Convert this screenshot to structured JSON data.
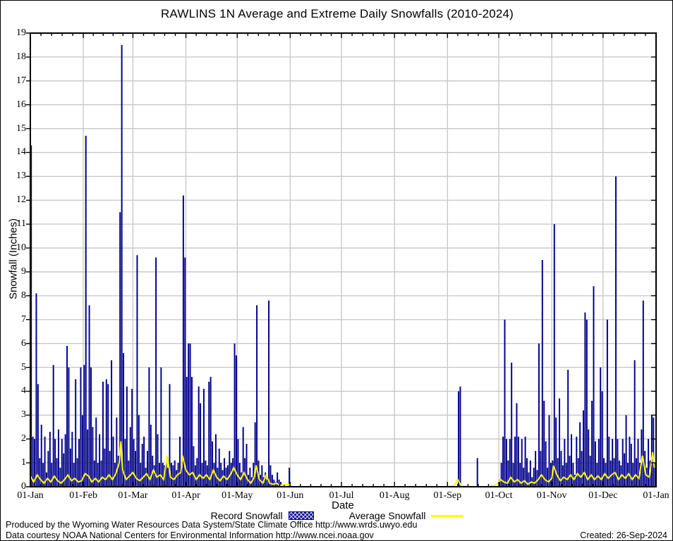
{
  "title": "RAWLINS 1N Average and Extreme Daily Snowfalls (2010-2024)",
  "y_axis": {
    "label": "Snowfall (Inches)",
    "ticks": [
      "0",
      "1",
      "2",
      "3",
      "4",
      "5",
      "6",
      "7",
      "8",
      "9",
      "10",
      "11",
      "12",
      "13",
      "14",
      "15",
      "16",
      "17",
      "18",
      "19"
    ]
  },
  "x_axis": {
    "label": "Date",
    "ticks": [
      "01-Jan",
      "01-Feb",
      "01-Mar",
      "01-Apr",
      "01-May",
      "01-Jun",
      "01-Jul",
      "01-Aug",
      "01-Sep",
      "01-Oct",
      "01-Nov",
      "01-Dec",
      "01-Jan"
    ]
  },
  "legend": {
    "record_label": "Record Snowfall",
    "average_label": "Average Snowfall"
  },
  "footer": {
    "line1": "Produced by the Wyoming Water Resources Data System/State Climate Office http://www.wrds.uwyo.edu",
    "line2": "Data courtesy NOAA National Centers for Environmental Information http://www.ncei.noaa.gov",
    "created": "Created: 26-Sep-2024"
  },
  "colors": {
    "record_bar": "#00008b",
    "average_line": "#ffff00",
    "grid": "#c6c6c6",
    "axis": "#000000",
    "background": "#ffffff"
  },
  "chart_data": {
    "type": "bar",
    "title": "RAWLINS 1N Average and Extreme Daily Snowfalls (2010-2024)",
    "xlabel": "Date",
    "ylabel": "Snowfall (Inches)",
    "ylim": [
      0,
      19
    ],
    "grid": true,
    "legend_position": "bottom",
    "x_unit": "day_of_year",
    "month_boundaries": [
      0,
      31,
      60,
      91,
      121,
      152,
      182,
      213,
      244,
      274,
      305,
      335,
      366
    ],
    "series": [
      {
        "name": "Record Snowfall",
        "type": "bar",
        "color": "#00008b",
        "values": [
          14.3,
          2.1,
          2.0,
          8.1,
          4.3,
          1.2,
          2.6,
          1.0,
          2.1,
          0.6,
          1.5,
          2.3,
          1.0,
          5.1,
          2.0,
          1.2,
          2.4,
          0.8,
          2.0,
          1.4,
          2.2,
          5.9,
          5.0,
          1.6,
          2.3,
          1.0,
          4.5,
          1.2,
          2.0,
          5.0,
          3.0,
          5.1,
          14.7,
          2.4,
          7.6,
          5.0,
          2.5,
          1.1,
          2.9,
          1.0,
          2.2,
          1.1,
          4.4,
          1.6,
          4.5,
          4.3,
          1.5,
          5.3,
          2.1,
          1.0,
          2.9,
          1.3,
          11.5,
          18.5,
          5.6,
          2.0,
          4.2,
          1.1,
          2.5,
          4.1,
          2.0,
          1.5,
          9.7,
          3.0,
          1.0,
          1.8,
          2.1,
          0.8,
          1.5,
          5.0,
          2.6,
          1.3,
          0.9,
          9.6,
          2.2,
          1.0,
          5.0,
          1.0,
          0.9,
          1.0,
          0.8,
          4.3,
          1.0,
          0.9,
          1.1,
          0.7,
          1.0,
          2.1,
          0.8,
          12.2,
          9.6,
          4.6,
          6.0,
          6.0,
          4.6,
          1.7,
          0.9,
          1.2,
          4.2,
          3.5,
          1.0,
          4.1,
          1.1,
          0.9,
          4.4,
          4.6,
          1.9,
          1.0,
          2.2,
          0.8,
          1.6,
          1.0,
          0.7,
          1.2,
          0.8,
          0.9,
          1.5,
          1.0,
          1.2,
          6.0,
          5.5,
          2.0,
          1.0,
          0.6,
          2.5,
          1.2,
          1.8,
          0.5,
          0.8,
          0.4,
          1.0,
          2.7,
          7.6,
          1.1,
          0.5,
          0.9,
          0.4,
          0.6,
          0.3,
          7.8,
          0.9,
          0.5,
          0.3,
          0.2,
          0.6,
          0.3,
          0.2,
          0,
          0.1,
          0,
          0,
          0.8,
          0,
          0,
          0,
          0,
          0,
          0,
          0,
          0,
          0,
          0,
          0,
          0,
          0,
          0,
          0,
          0,
          0,
          0,
          0,
          0,
          0,
          0,
          0,
          0,
          0,
          0,
          0,
          0,
          0,
          0,
          0,
          0,
          0,
          0,
          0,
          0,
          0,
          0,
          0,
          0,
          0,
          0,
          0,
          0,
          0,
          0,
          0,
          0,
          0,
          0,
          0,
          0,
          0,
          0,
          0,
          0,
          0,
          0,
          0,
          0,
          0,
          0,
          0,
          0,
          0,
          0,
          0,
          0,
          0,
          0,
          0,
          0,
          0,
          0,
          0,
          0,
          0,
          0,
          0,
          0,
          0,
          0,
          0,
          0,
          0,
          0,
          0,
          0,
          0,
          0,
          0,
          0,
          0,
          0,
          0,
          0,
          0,
          0,
          4.0,
          4.2,
          0,
          0,
          0,
          0,
          0,
          0,
          0,
          0,
          0,
          1.2,
          0,
          0,
          0,
          0,
          0,
          0,
          0,
          0,
          0,
          0,
          0,
          0,
          0.3,
          1.0,
          2.1,
          7.0,
          2.0,
          1.1,
          2.0,
          5.2,
          1.0,
          2.1,
          3.5,
          2.1,
          1.0,
          2.0,
          0.8,
          2.1,
          1.2,
          0.6,
          1.1,
          0.4,
          0.8,
          1.5,
          0.7,
          6.0,
          1.5,
          9.5,
          3.6,
          1.9,
          0.8,
          3.0,
          1.0,
          1.1,
          11.0,
          2.9,
          1.2,
          3.7,
          1.5,
          0.9,
          2.0,
          1.0,
          4.9,
          1.3,
          2.2,
          1.0,
          0.5,
          2.1,
          1.2,
          2.7,
          1.5,
          3.2,
          7.3,
          7.0,
          2.4,
          1.3,
          3.6,
          8.4,
          1.9,
          1.0,
          2.0,
          5.0,
          4.0,
          1.2,
          1.0,
          7.0,
          2.1,
          1.1,
          2.0,
          1.2,
          13.0,
          2.0,
          1.1,
          0.9,
          2.0,
          1.4,
          3.0,
          1.0,
          2.1,
          1.8,
          1.0,
          5.3,
          1.2,
          2.0,
          1.0,
          2.4,
          7.8,
          1.5,
          0.8,
          2.0,
          1.1,
          3.0,
          2.9,
          1.0
        ]
      },
      {
        "name": "Average Snowfall",
        "type": "line",
        "color": "#ffff00",
        "points": [
          [
            0,
            0.45
          ],
          [
            2,
            0.2
          ],
          [
            4,
            0.5
          ],
          [
            6,
            0.3
          ],
          [
            8,
            0.15
          ],
          [
            10,
            0.35
          ],
          [
            12,
            0.2
          ],
          [
            14,
            0.45
          ],
          [
            16,
            0.25
          ],
          [
            18,
            0.15
          ],
          [
            20,
            0.3
          ],
          [
            22,
            0.5
          ],
          [
            24,
            0.25
          ],
          [
            26,
            0.35
          ],
          [
            28,
            0.2
          ],
          [
            30,
            0.25
          ],
          [
            32,
            0.55
          ],
          [
            34,
            0.45
          ],
          [
            36,
            0.2
          ],
          [
            38,
            0.35
          ],
          [
            40,
            0.2
          ],
          [
            42,
            0.4
          ],
          [
            44,
            0.3
          ],
          [
            46,
            0.5
          ],
          [
            48,
            0.3
          ],
          [
            50,
            0.55
          ],
          [
            52,
            1.0
          ],
          [
            53,
            1.9
          ],
          [
            54,
            0.7
          ],
          [
            56,
            0.3
          ],
          [
            58,
            0.45
          ],
          [
            60,
            0.6
          ],
          [
            62,
            0.35
          ],
          [
            64,
            0.25
          ],
          [
            66,
            0.4
          ],
          [
            68,
            0.55
          ],
          [
            70,
            0.3
          ],
          [
            72,
            0.7
          ],
          [
            74,
            0.4
          ],
          [
            76,
            0.5
          ],
          [
            78,
            0.3
          ],
          [
            80,
            1.3
          ],
          [
            82,
            0.4
          ],
          [
            84,
            0.3
          ],
          [
            86,
            0.5
          ],
          [
            88,
            0.6
          ],
          [
            89,
            1.3
          ],
          [
            91,
            0.7
          ],
          [
            93,
            0.5
          ],
          [
            95,
            0.6
          ],
          [
            97,
            0.3
          ],
          [
            99,
            0.5
          ],
          [
            101,
            0.35
          ],
          [
            103,
            0.5
          ],
          [
            105,
            0.3
          ],
          [
            107,
            0.7
          ],
          [
            109,
            0.4
          ],
          [
            111,
            0.25
          ],
          [
            113,
            0.45
          ],
          [
            115,
            0.3
          ],
          [
            117,
            0.5
          ],
          [
            119,
            0.8
          ],
          [
            121,
            0.5
          ],
          [
            123,
            0.3
          ],
          [
            125,
            0.6
          ],
          [
            127,
            0.3
          ],
          [
            129,
            0.15
          ],
          [
            131,
            0.4
          ],
          [
            132,
            0.9
          ],
          [
            134,
            0.3
          ],
          [
            136,
            0.15
          ],
          [
            138,
            0.5
          ],
          [
            140,
            0.15
          ],
          [
            142,
            0.1
          ],
          [
            144,
            0.15
          ],
          [
            146,
            0.05
          ],
          [
            148,
            0.1
          ],
          [
            151,
            0.1
          ],
          [
            154,
            0
          ],
          [
            160,
            0
          ],
          [
            180,
            0
          ],
          [
            200,
            0
          ],
          [
            220,
            0
          ],
          [
            243,
            0
          ],
          [
            248,
            0.05
          ],
          [
            250,
            0.3
          ],
          [
            252,
            0.05
          ],
          [
            256,
            0
          ],
          [
            268,
            0
          ],
          [
            273,
            0.1
          ],
          [
            275,
            0.3
          ],
          [
            277,
            0.2
          ],
          [
            279,
            0.15
          ],
          [
            281,
            0.4
          ],
          [
            283,
            0.2
          ],
          [
            285,
            0.3
          ],
          [
            287,
            0.15
          ],
          [
            289,
            0.25
          ],
          [
            291,
            0.1
          ],
          [
            293,
            0.2
          ],
          [
            295,
            0.15
          ],
          [
            297,
            0.3
          ],
          [
            299,
            0.5
          ],
          [
            301,
            0.3
          ],
          [
            303,
            0.2
          ],
          [
            305,
            0.35
          ],
          [
            306,
            0.88
          ],
          [
            308,
            0.5
          ],
          [
            310,
            0.25
          ],
          [
            312,
            0.4
          ],
          [
            314,
            0.3
          ],
          [
            316,
            0.5
          ],
          [
            318,
            0.3
          ],
          [
            320,
            0.55
          ],
          [
            322,
            0.4
          ],
          [
            324,
            0.6
          ],
          [
            326,
            0.3
          ],
          [
            328,
            0.5
          ],
          [
            330,
            0.3
          ],
          [
            332,
            0.45
          ],
          [
            334,
            0.3
          ],
          [
            336,
            0.55
          ],
          [
            338,
            0.35
          ],
          [
            340,
            0.5
          ],
          [
            342,
            0.6
          ],
          [
            344,
            0.3
          ],
          [
            346,
            0.5
          ],
          [
            348,
            0.35
          ],
          [
            350,
            0.55
          ],
          [
            352,
            0.3
          ],
          [
            354,
            0.5
          ],
          [
            356,
            0.35
          ],
          [
            358,
            1.3
          ],
          [
            360,
            0.5
          ],
          [
            362,
            0.4
          ],
          [
            364,
            1.45
          ],
          [
            365,
            0.8
          ]
        ]
      }
    ]
  }
}
